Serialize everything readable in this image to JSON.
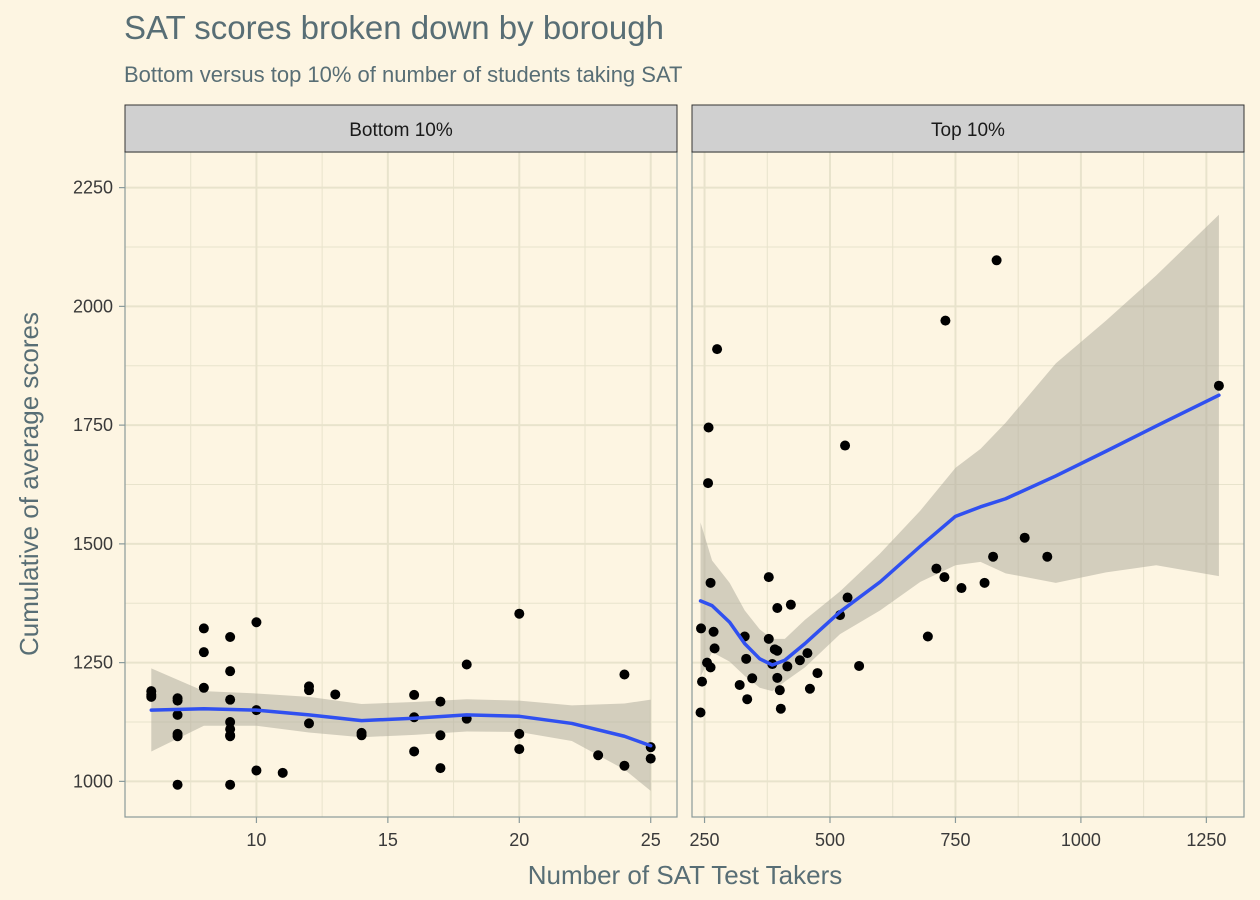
{
  "chart_data": {
    "type": "scatter",
    "title": "SAT scores broken down by borough",
    "subtitle": "Bottom versus top 10% of number of students taking SAT",
    "xlabel": "Number of SAT Test Takers",
    "ylabel": "Cumulative of average scores",
    "ylim": [
      925,
      2325
    ],
    "y_ticks": [
      1000,
      1250,
      1500,
      1750,
      2000,
      2250
    ],
    "grid": true,
    "legend": "none",
    "colors": {
      "background": "#fdf5e2",
      "grid": "#e8e3cc",
      "strip": "#d0d0d0",
      "smooth_line": "#3050f0",
      "ribbon": "#b0ad9f",
      "points": "#000000",
      "text": "#586e75",
      "tick_text": "#3a3a3a"
    },
    "panels": [
      {
        "strip_label": "Bottom 10%",
        "xlim": [
          5,
          26
        ],
        "x_ticks": [
          10,
          15,
          20,
          25
        ],
        "points": [
          [
            6,
            1182
          ],
          [
            6,
            1190
          ],
          [
            6,
            1178
          ],
          [
            7,
            1175
          ],
          [
            7,
            1170
          ],
          [
            7,
            1140
          ],
          [
            7,
            1100
          ],
          [
            7,
            1095
          ],
          [
            7,
            993
          ],
          [
            8,
            1322
          ],
          [
            8,
            1272
          ],
          [
            8,
            1197
          ],
          [
            9,
            1304
          ],
          [
            9,
            1232
          ],
          [
            9,
            1172
          ],
          [
            9,
            1125
          ],
          [
            9,
            1110
          ],
          [
            9,
            1097
          ],
          [
            9,
            1095
          ],
          [
            9,
            993
          ],
          [
            10,
            1335
          ],
          [
            10,
            1150
          ],
          [
            10,
            1023
          ],
          [
            11,
            1018
          ],
          [
            12,
            1200
          ],
          [
            12,
            1192
          ],
          [
            12,
            1122
          ],
          [
            13,
            1183
          ],
          [
            14,
            1102
          ],
          [
            14,
            1097
          ],
          [
            16,
            1182
          ],
          [
            16,
            1135
          ],
          [
            16,
            1063
          ],
          [
            17,
            1168
          ],
          [
            17,
            1097
          ],
          [
            17,
            1028
          ],
          [
            18,
            1246
          ],
          [
            18,
            1132
          ],
          [
            20,
            1353
          ],
          [
            20,
            1100
          ],
          [
            20,
            1068
          ],
          [
            23,
            1055
          ],
          [
            24,
            1225
          ],
          [
            24,
            1033
          ],
          [
            25,
            1072
          ],
          [
            25,
            1048
          ]
        ],
        "smooth": [
          [
            6,
            1150
          ],
          [
            8,
            1153
          ],
          [
            10,
            1150
          ],
          [
            12,
            1140
          ],
          [
            14,
            1128
          ],
          [
            16,
            1133
          ],
          [
            18,
            1140
          ],
          [
            20,
            1137
          ],
          [
            22,
            1122
          ],
          [
            24,
            1095
          ],
          [
            25,
            1075
          ]
        ],
        "band_upper": [
          [
            6,
            1238
          ],
          [
            8,
            1190
          ],
          [
            10,
            1185
          ],
          [
            12,
            1178
          ],
          [
            14,
            1163
          ],
          [
            16,
            1167
          ],
          [
            18,
            1173
          ],
          [
            20,
            1170
          ],
          [
            22,
            1160
          ],
          [
            24,
            1164
          ],
          [
            25,
            1172
          ]
        ],
        "band_lower": [
          [
            6,
            1063
          ],
          [
            8,
            1117
          ],
          [
            10,
            1117
          ],
          [
            12,
            1103
          ],
          [
            14,
            1093
          ],
          [
            16,
            1098
          ],
          [
            18,
            1105
          ],
          [
            20,
            1104
          ],
          [
            22,
            1085
          ],
          [
            24,
            1025
          ],
          [
            25,
            980
          ]
        ]
      },
      {
        "strip_label": "Top 10%",
        "xlim": [
          225,
          1325
        ],
        "x_ticks": [
          250,
          500,
          750,
          1000,
          1250
        ],
        "points": [
          [
            242,
            1145
          ],
          [
            243,
            1322
          ],
          [
            245,
            1210
          ],
          [
            255,
            1250
          ],
          [
            257,
            1628
          ],
          [
            258,
            1745
          ],
          [
            262,
            1418
          ],
          [
            262,
            1240
          ],
          [
            268,
            1315
          ],
          [
            270,
            1280
          ],
          [
            275,
            1910
          ],
          [
            320,
            1203
          ],
          [
            330,
            1305
          ],
          [
            333,
            1258
          ],
          [
            335,
            1173
          ],
          [
            345,
            1217
          ],
          [
            378,
            1430
          ],
          [
            378,
            1300
          ],
          [
            385,
            1247
          ],
          [
            390,
            1278
          ],
          [
            395,
            1365
          ],
          [
            395,
            1275
          ],
          [
            395,
            1218
          ],
          [
            400,
            1192
          ],
          [
            402,
            1153
          ],
          [
            415,
            1242
          ],
          [
            422,
            1372
          ],
          [
            440,
            1255
          ],
          [
            455,
            1270
          ],
          [
            460,
            1195
          ],
          [
            475,
            1228
          ],
          [
            520,
            1350
          ],
          [
            530,
            1707
          ],
          [
            535,
            1387
          ],
          [
            558,
            1243
          ],
          [
            695,
            1305
          ],
          [
            712,
            1448
          ],
          [
            728,
            1430
          ],
          [
            730,
            1970
          ],
          [
            762,
            1407
          ],
          [
            808,
            1418
          ],
          [
            825,
            1473
          ],
          [
            832,
            2097
          ],
          [
            888,
            1513
          ],
          [
            933,
            1473
          ],
          [
            1275,
            1833
          ]
        ],
        "smooth": [
          [
            242,
            1380
          ],
          [
            265,
            1370
          ],
          [
            300,
            1335
          ],
          [
            330,
            1290
          ],
          [
            360,
            1258
          ],
          [
            385,
            1245
          ],
          [
            410,
            1255
          ],
          [
            450,
            1290
          ],
          [
            520,
            1357
          ],
          [
            600,
            1420
          ],
          [
            680,
            1495
          ],
          [
            750,
            1558
          ],
          [
            800,
            1578
          ],
          [
            850,
            1595
          ],
          [
            950,
            1643
          ],
          [
            1050,
            1695
          ],
          [
            1150,
            1748
          ],
          [
            1275,
            1813
          ]
        ],
        "band_upper": [
          [
            242,
            1545
          ],
          [
            265,
            1465
          ],
          [
            300,
            1418
          ],
          [
            330,
            1360
          ],
          [
            360,
            1320
          ],
          [
            385,
            1300
          ],
          [
            410,
            1300
          ],
          [
            450,
            1340
          ],
          [
            520,
            1400
          ],
          [
            600,
            1480
          ],
          [
            680,
            1570
          ],
          [
            750,
            1660
          ],
          [
            800,
            1700
          ],
          [
            850,
            1755
          ],
          [
            950,
            1880
          ],
          [
            1050,
            1970
          ],
          [
            1150,
            2065
          ],
          [
            1275,
            2193
          ]
        ],
        "band_lower": [
          [
            242,
            1220
          ],
          [
            265,
            1272
          ],
          [
            300,
            1252
          ],
          [
            330,
            1222
          ],
          [
            360,
            1197
          ],
          [
            385,
            1190
          ],
          [
            410,
            1210
          ],
          [
            450,
            1240
          ],
          [
            520,
            1310
          ],
          [
            600,
            1360
          ],
          [
            680,
            1420
          ],
          [
            750,
            1455
          ],
          [
            800,
            1462
          ],
          [
            850,
            1438
          ],
          [
            950,
            1418
          ],
          [
            1050,
            1440
          ],
          [
            1150,
            1455
          ],
          [
            1275,
            1432
          ]
        ]
      }
    ]
  }
}
